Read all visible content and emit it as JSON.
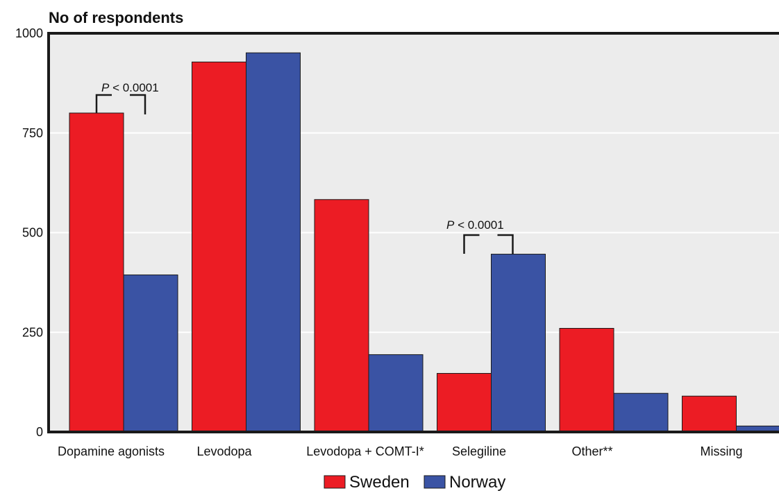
{
  "chart_data": {
    "type": "bar",
    "title": "",
    "ylabel": "No of respondents",
    "xlabel": "",
    "ylim": [
      0,
      1000
    ],
    "yticks": [
      0,
      250,
      500,
      750,
      1000
    ],
    "grid": true,
    "legend_position": "bottom-center",
    "categories": [
      "Dopamine agonists",
      "Levodopa",
      "Levodopa + COMT-I*",
      "Selegiline",
      "Other**",
      "Missing"
    ],
    "series": [
      {
        "name": "Sweden",
        "color": "#ec1c24",
        "values": [
          800,
          928,
          583,
          147,
          260,
          90
        ]
      },
      {
        "name": "Norway",
        "color": "#3a53a4",
        "values": [
          394,
          951,
          194,
          446,
          97,
          15
        ]
      }
    ],
    "annotations": [
      {
        "category": "Dopamine agonists",
        "italic": "P",
        "text": " < 0.0001"
      },
      {
        "category": "Selegiline",
        "italic": "P",
        "text": " < 0.0001"
      }
    ]
  }
}
